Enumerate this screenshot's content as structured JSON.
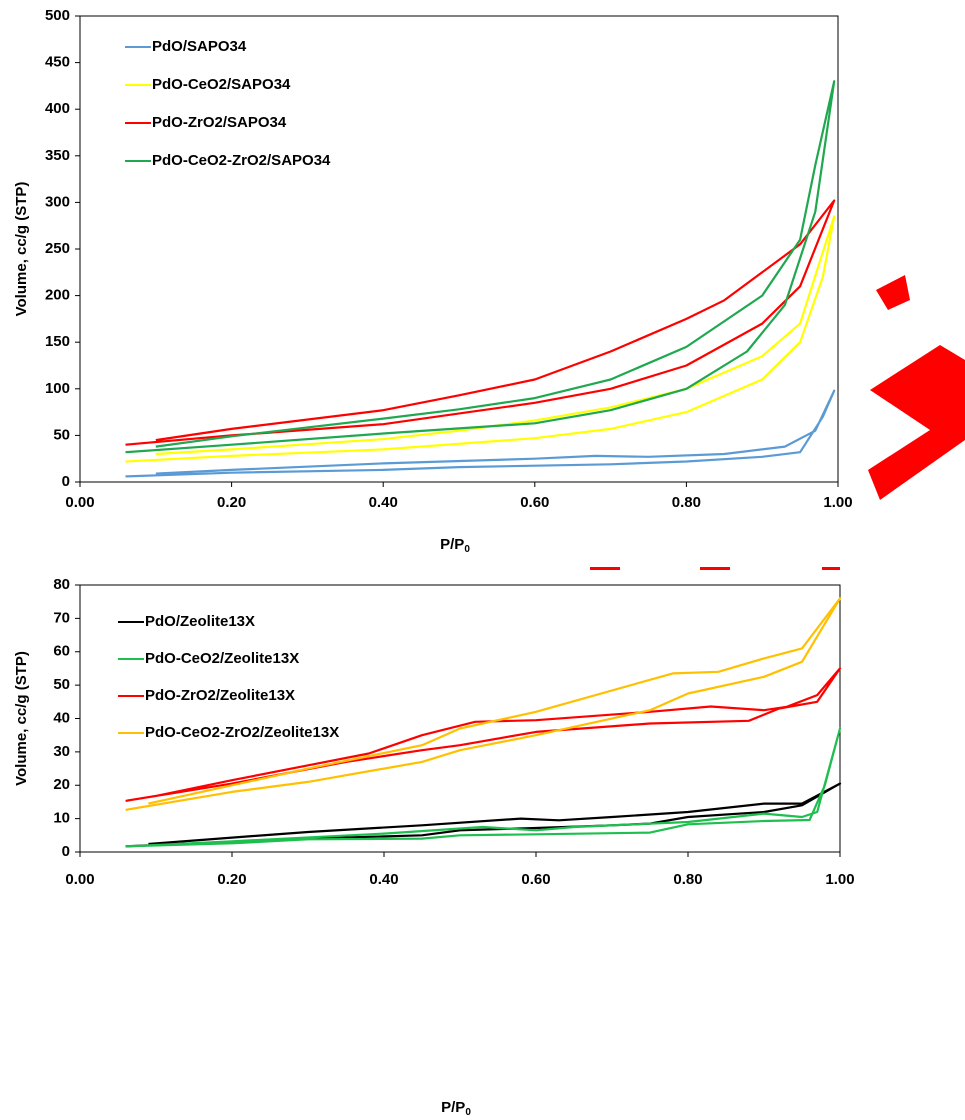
{
  "chart_data": [
    {
      "type": "line",
      "y_label": "Volume, cc/g (STP)",
      "x_label": {
        "main": "P/P",
        "subscript": "0"
      },
      "xlim": [
        0,
        1
      ],
      "ylim": [
        0,
        500
      ],
      "xticks": [
        {
          "value": 0,
          "label": "0.00"
        },
        {
          "value": 0.2,
          "label": "0.20"
        },
        {
          "value": 0.4,
          "label": "0.40"
        },
        {
          "value": 0.6,
          "label": "0.60"
        },
        {
          "value": 0.8,
          "label": "0.80"
        },
        {
          "value": 1,
          "label": "1.00"
        }
      ],
      "yticks": [
        0,
        50,
        100,
        150,
        200,
        250,
        300,
        350,
        400,
        450,
        500
      ],
      "legend": "upper left",
      "series": [
        {
          "name": "PdO/SAPO34",
          "color": "#5b9bd5",
          "x": [
            0.06,
            0.2,
            0.4,
            0.5,
            0.7,
            0.8,
            0.9,
            0.95,
            0.98,
            0.995,
            0.97,
            0.93,
            0.85,
            0.75,
            0.68,
            0.6,
            0.4,
            0.2,
            0.1
          ],
          "values": [
            6,
            10,
            13,
            16,
            19,
            22,
            27,
            32,
            70,
            98,
            55,
            38,
            30,
            27,
            28,
            25,
            20,
            13,
            9
          ]
        },
        {
          "name": "PdO-CeO2/SAPO34",
          "color": "#ffff00",
          "x": [
            0.06,
            0.2,
            0.4,
            0.6,
            0.7,
            0.8,
            0.9,
            0.95,
            0.98,
            0.995,
            0.95,
            0.9,
            0.8,
            0.7,
            0.6,
            0.5,
            0.4,
            0.2,
            0.1
          ],
          "values": [
            22,
            28,
            35,
            47,
            57,
            75,
            110,
            150,
            220,
            285,
            170,
            135,
            100,
            80,
            66,
            55,
            46,
            35,
            30
          ]
        },
        {
          "name": "PdO-ZrO2/SAPO34",
          "color": "#ff0000",
          "x": [
            0.06,
            0.2,
            0.4,
            0.6,
            0.7,
            0.8,
            0.9,
            0.95,
            0.995,
            0.95,
            0.9,
            0.85,
            0.8,
            0.7,
            0.6,
            0.5,
            0.4,
            0.2,
            0.1
          ],
          "values": [
            40,
            50,
            62,
            85,
            100,
            125,
            170,
            210,
            302,
            255,
            225,
            195,
            175,
            140,
            110,
            93,
            77,
            57,
            45
          ]
        },
        {
          "name": "PdO-CeO2-ZrO2/SAPO34",
          "color": "#1fa84f",
          "x": [
            0.06,
            0.2,
            0.4,
            0.6,
            0.7,
            0.8,
            0.88,
            0.93,
            0.97,
            0.995,
            0.97,
            0.95,
            0.9,
            0.8,
            0.7,
            0.6,
            0.5,
            0.4,
            0.2,
            0.1
          ],
          "values": [
            32,
            40,
            52,
            63,
            77,
            100,
            140,
            190,
            290,
            430,
            340,
            260,
            200,
            145,
            110,
            90,
            78,
            68,
            49,
            38
          ]
        }
      ]
    },
    {
      "type": "line",
      "y_label": "Volume, cc/g (STP)",
      "x_label": {
        "main": "P/P",
        "subscript": "0"
      },
      "xlim": [
        0,
        1
      ],
      "ylim": [
        0,
        80
      ],
      "xticks": [
        {
          "value": 0,
          "label": "0.00"
        },
        {
          "value": 0.2,
          "label": "0.20"
        },
        {
          "value": 0.4,
          "label": "0.40"
        },
        {
          "value": 0.6,
          "label": "0.60"
        },
        {
          "value": 0.8,
          "label": "0.80"
        },
        {
          "value": 1,
          "label": "1.00"
        }
      ],
      "yticks": [
        0,
        10,
        20,
        30,
        40,
        50,
        60,
        70,
        80
      ],
      "legend": "upper left",
      "series": [
        {
          "name": "PdO/Zeolite13X",
          "color": "#000000",
          "x": [
            0.06,
            0.2,
            0.3,
            0.45,
            0.5,
            0.6,
            0.7,
            0.75,
            0.8,
            0.9,
            0.95,
            1.0,
            0.95,
            0.9,
            0.8,
            0.7,
            0.63,
            0.58,
            0.45,
            0.3,
            0.2,
            0.09
          ],
          "values": [
            1.7,
            3,
            4,
            5,
            6.5,
            7.2,
            8,
            8.5,
            10.5,
            12,
            14,
            20.5,
            14.5,
            14.5,
            12,
            10.5,
            9.5,
            10,
            8,
            6,
            4.3,
            2.4
          ]
        },
        {
          "name": "PdO-CeO2/Zeolite13X",
          "color": "#1fbf4f",
          "x": [
            0.06,
            0.2,
            0.3,
            0.45,
            0.5,
            0.6,
            0.75,
            0.8,
            0.9,
            0.96,
            0.98,
            1.0,
            0.97,
            0.95,
            0.9,
            0.8,
            0.65,
            0.6,
            0.53,
            0.4,
            0.2,
            0.09
          ],
          "values": [
            1.7,
            2.6,
            3.8,
            4,
            5,
            5.3,
            5.8,
            8.3,
            9.3,
            9.6,
            20,
            37,
            12,
            10.5,
            11.5,
            9,
            7.5,
            6.5,
            7.5,
            5.5,
            3.2,
            2
          ]
        },
        {
          "name": "PdO-ZrO2/Zeolite13X",
          "color": "#ff0000",
          "x": [
            0.06,
            0.2,
            0.35,
            0.45,
            0.5,
            0.6,
            0.75,
            0.88,
            0.92,
            0.97,
            1.0,
            0.97,
            0.93,
            0.9,
            0.83,
            0.75,
            0.6,
            0.52,
            0.45,
            0.38,
            0.2,
            0.1
          ],
          "values": [
            15.3,
            20.5,
            27,
            30.5,
            32,
            36,
            38.5,
            39.3,
            43,
            45,
            55,
            47,
            43.5,
            42.5,
            43.6,
            42,
            39.5,
            39,
            35,
            29.5,
            21.5,
            16.8
          ]
        },
        {
          "name": "PdO-CeO2-ZrO2/Zeolite13X",
          "color": "#ffc000",
          "x": [
            0.06,
            0.2,
            0.3,
            0.45,
            0.5,
            0.6,
            0.75,
            0.8,
            0.9,
            0.95,
            1.0,
            0.95,
            0.9,
            0.84,
            0.78,
            0.6,
            0.5,
            0.45,
            0.3,
            0.2,
            0.09
          ],
          "values": [
            12.6,
            18,
            21,
            27,
            30.5,
            35,
            42.5,
            47.5,
            52.5,
            57,
            76,
            61,
            58,
            54,
            53.5,
            42,
            37,
            32,
            25,
            20,
            14.5
          ]
        }
      ]
    }
  ]
}
